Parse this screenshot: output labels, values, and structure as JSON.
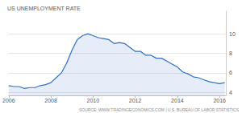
{
  "chart_data": {
    "type": "line",
    "title": "US UNEMPLOYMENT RATE",
    "annotation": "SOURCE: WWW.TRADINGECONOMICS.COM | U.S. BUREAU OF LABOR STATISTICS",
    "x": [
      2006,
      2006.25,
      2006.5,
      2006.75,
      2007,
      2007.25,
      2007.5,
      2007.75,
      2008,
      2008.25,
      2008.5,
      2008.75,
      2009,
      2009.25,
      2009.5,
      2009.75,
      2010,
      2010.25,
      2010.5,
      2010.75,
      2011,
      2011.25,
      2011.5,
      2011.75,
      2012,
      2012.25,
      2012.5,
      2012.75,
      2013,
      2013.25,
      2013.5,
      2013.75,
      2014,
      2014.25,
      2014.5,
      2014.75,
      2015,
      2015.25,
      2015.5,
      2015.75,
      2016,
      2016.25
    ],
    "values": [
      4.7,
      4.6,
      4.6,
      4.4,
      4.5,
      4.5,
      4.7,
      4.8,
      5.0,
      5.5,
      6.0,
      7.0,
      8.3,
      9.4,
      9.8,
      10.0,
      9.8,
      9.6,
      9.5,
      9.4,
      9.0,
      9.1,
      9.0,
      8.6,
      8.2,
      8.2,
      7.8,
      7.8,
      7.5,
      7.5,
      7.2,
      6.9,
      6.6,
      6.1,
      5.9,
      5.6,
      5.5,
      5.3,
      5.1,
      5.0,
      4.9,
      5.0
    ],
    "color": "#2f6fc6",
    "xlim": [
      2006,
      2016.3
    ],
    "xticks": [
      2006,
      2008,
      2010,
      2012,
      2014,
      2016
    ],
    "ylim": [
      3.7,
      12.3
    ],
    "yticks": [
      4,
      6,
      8,
      10
    ],
    "grid": true
  }
}
